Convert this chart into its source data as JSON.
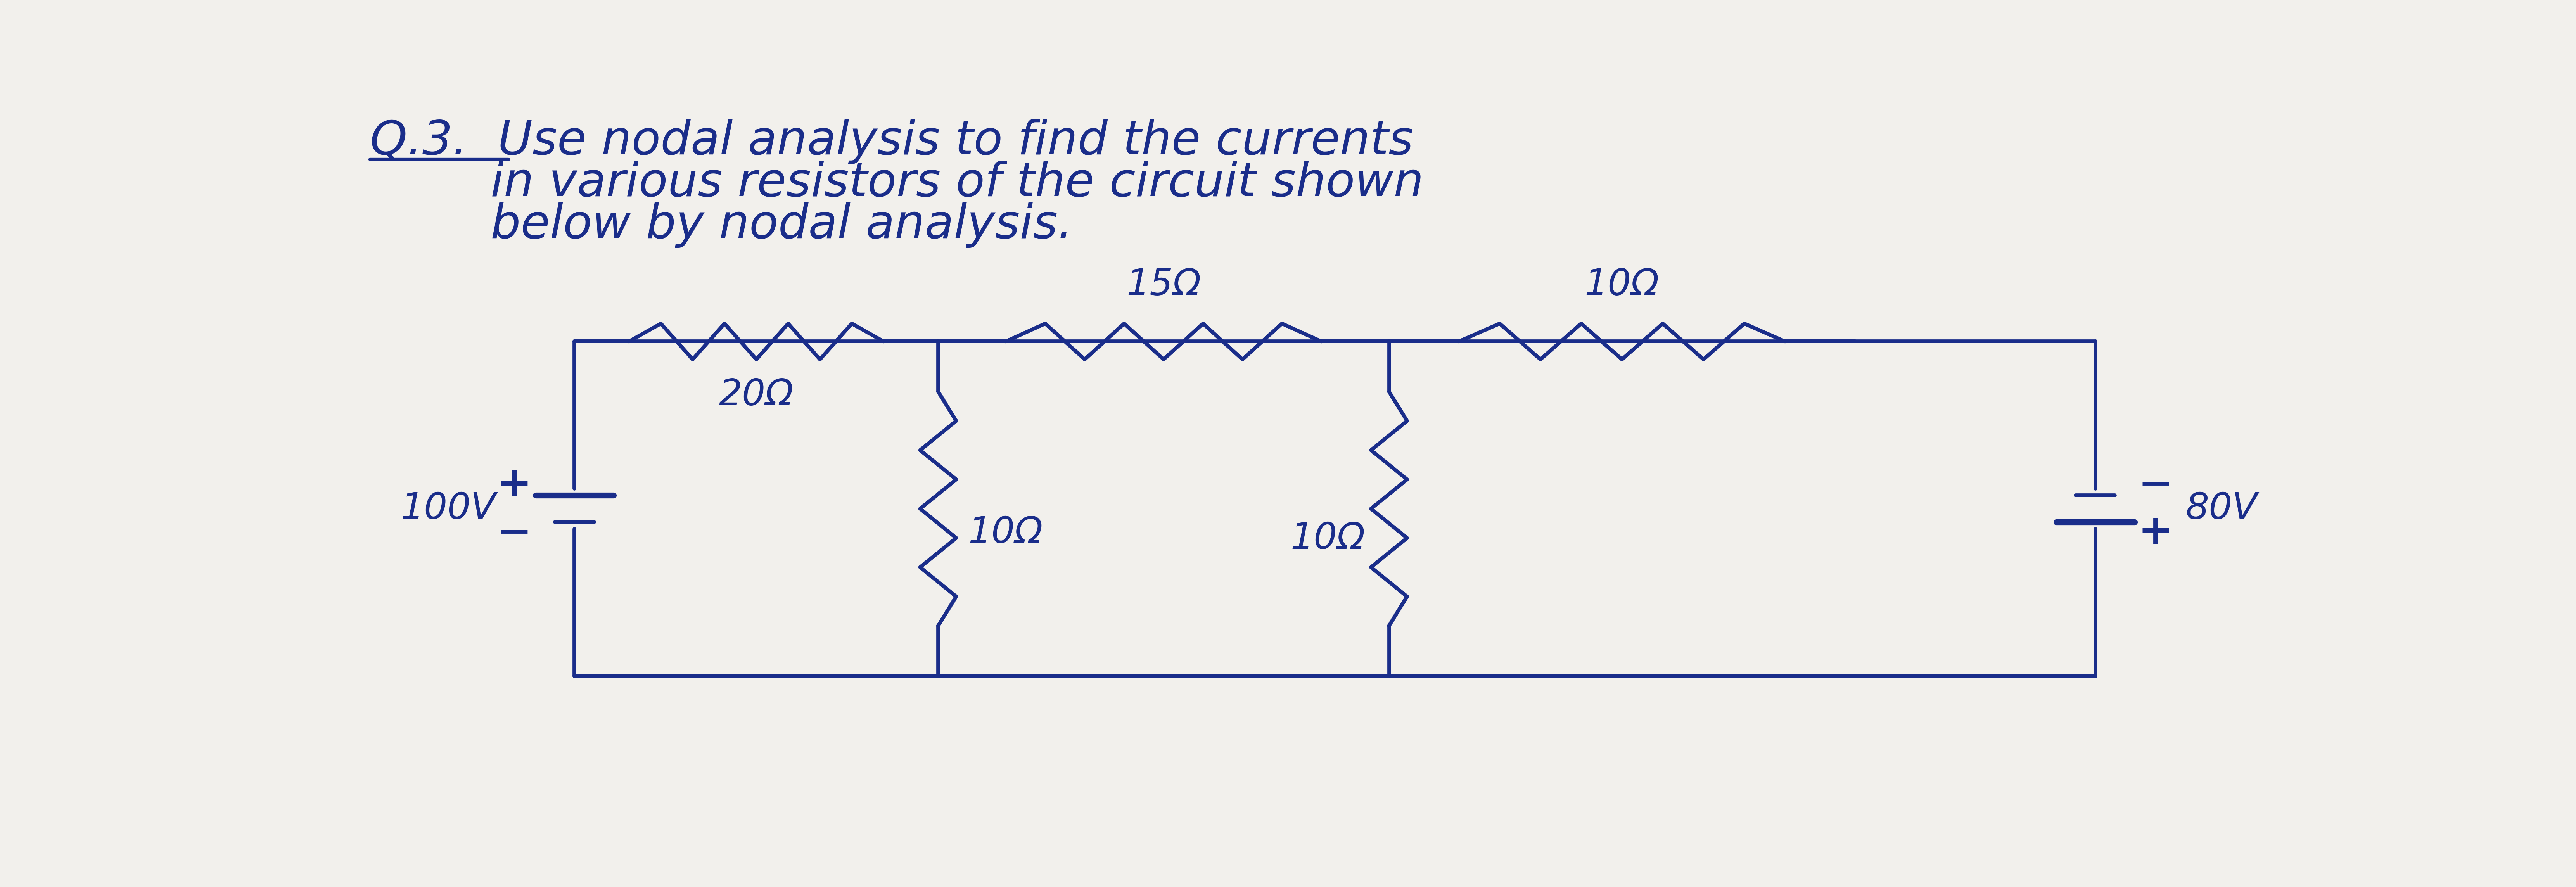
{
  "bg_color": "#f2f0ec",
  "ink_color": "#1a2d8a",
  "title_lines": [
    "Q.3.  Use nodal analysis to find the currents",
    "        in various resistors of the circuit shown",
    "        below by nodal analysis."
  ],
  "R1_label": "20Ω",
  "R2_label": "15Ω",
  "R3_label": "10Ω",
  "R4_label": "10Ω",
  "R5_label": "10Ω",
  "V1_label": "100V",
  "V2_label": "80V",
  "font_size_title": 88,
  "font_size_circuit": 68,
  "lw": 7
}
